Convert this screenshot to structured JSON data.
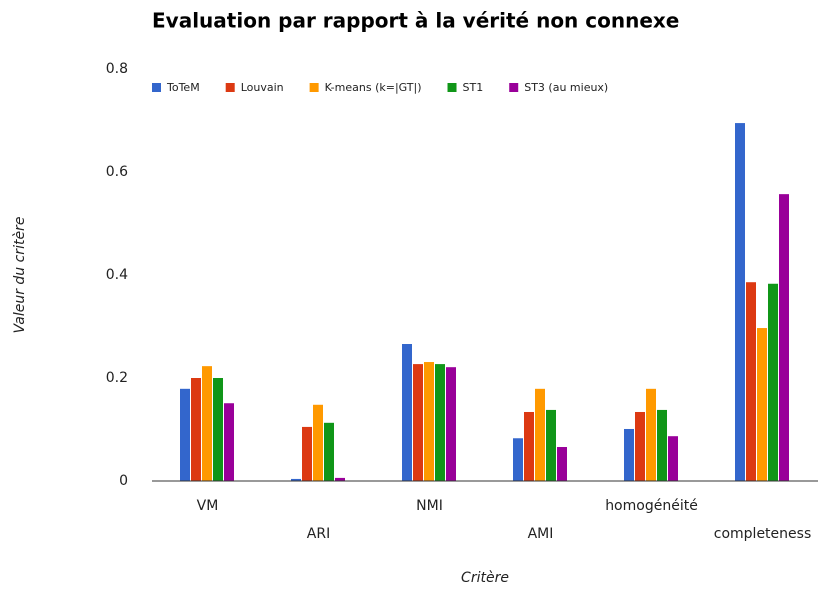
{
  "chart_data": {
    "type": "bar",
    "title": "Evaluation par rapport à la vérité non connexe",
    "x_label": "Critère",
    "y_label": "Valeur du critère",
    "categories": [
      "VM",
      "ARI",
      "NMI",
      "AMI",
      "homogénéité",
      "completeness"
    ],
    "series": [
      {
        "name": "ToTeM",
        "color": "#3366cc",
        "values": [
          0.179,
          0.004,
          0.266,
          0.083,
          0.101,
          0.695
        ]
      },
      {
        "name": "Louvain",
        "color": "#dc3912",
        "values": [
          0.2,
          0.105,
          0.227,
          0.134,
          0.134,
          0.386
        ]
      },
      {
        "name": "K-means (k=|GT|)",
        "color": "#ff9900",
        "values": [
          0.223,
          0.148,
          0.231,
          0.179,
          0.179,
          0.297
        ]
      },
      {
        "name": "ST1",
        "color": "#109618",
        "values": [
          0.2,
          0.113,
          0.227,
          0.138,
          0.138,
          0.383
        ]
      },
      {
        "name": "ST3 (au mieux)",
        "color": "#990099",
        "values": [
          0.151,
          0.006,
          0.221,
          0.066,
          0.087,
          0.557
        ]
      }
    ],
    "ylim": [
      0,
      0.8
    ],
    "yticks": [
      0,
      0.2,
      0.4,
      0.6,
      0.8
    ],
    "grid": false,
    "legend": "top"
  }
}
